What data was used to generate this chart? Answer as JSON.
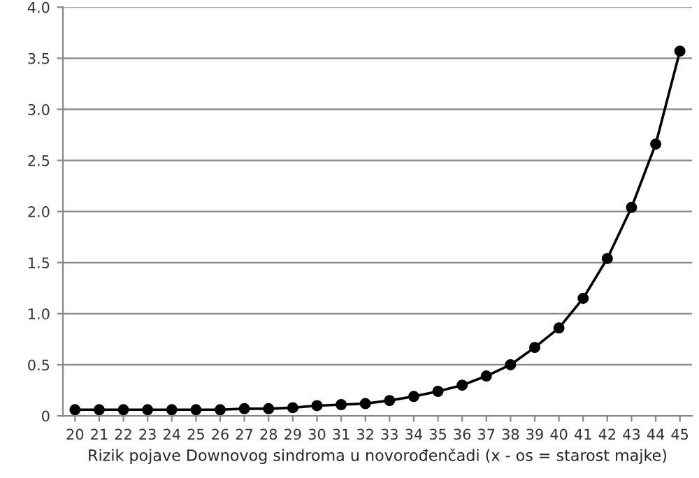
{
  "chart_data": {
    "type": "line",
    "xlabel": "Rizik pojave Downovog sindroma u novorođenčadi (x - os = starost majke)",
    "categories": [
      "20",
      "21",
      "22",
      "23",
      "24",
      "25",
      "26",
      "27",
      "28",
      "29",
      "30",
      "31",
      "32",
      "33",
      "34",
      "35",
      "36",
      "37",
      "38",
      "39",
      "40",
      "41",
      "42",
      "43",
      "44",
      "45"
    ],
    "series": [
      {
        "color": "#000000",
        "values": [
          0.06,
          0.06,
          0.06,
          0.06,
          0.06,
          0.06,
          0.06,
          0.07,
          0.07,
          0.08,
          0.1,
          0.11,
          0.12,
          0.15,
          0.19,
          0.24,
          0.3,
          0.39,
          0.5,
          0.67,
          0.86,
          1.15,
          1.54,
          2.04,
          2.66,
          3.57
        ]
      }
    ],
    "ylim": [
      0,
      4.0
    ],
    "yticks": [
      {
        "value": 0,
        "label": "0"
      },
      {
        "value": 0.5,
        "label": "0.5"
      },
      {
        "value": 1.0,
        "label": "1.0"
      },
      {
        "value": 1.5,
        "label": "1.5"
      },
      {
        "value": 2.0,
        "label": "2.0"
      },
      {
        "value": 2.5,
        "label": "2.5"
      },
      {
        "value": 3.0,
        "label": "3.0"
      },
      {
        "value": 3.5,
        "label": "3.5"
      },
      {
        "value": 4.0,
        "label": "4.0"
      }
    ],
    "grid": "y",
    "marker": "circle",
    "line_style": "solid",
    "legend": false
  }
}
